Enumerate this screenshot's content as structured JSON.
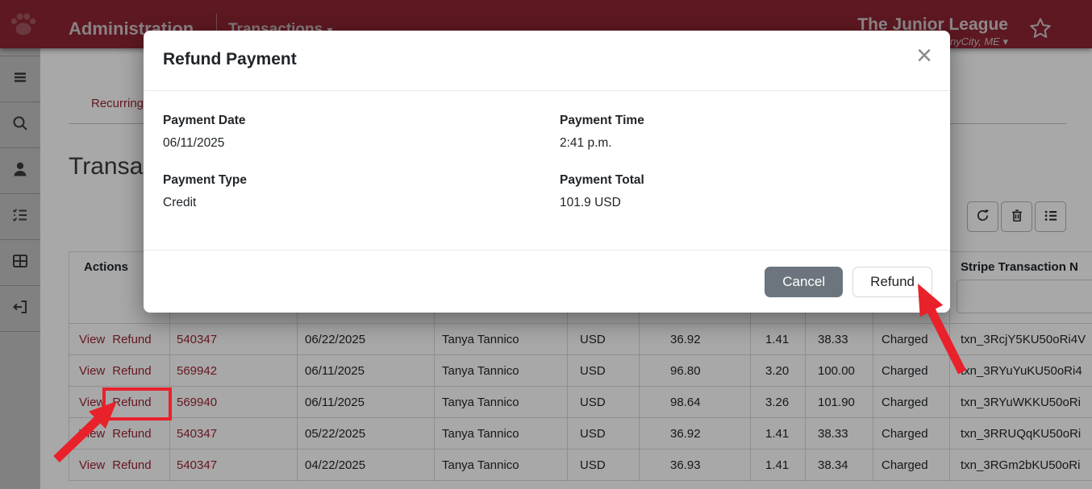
{
  "header": {
    "brand": "Administration",
    "nav": {
      "label": "Transactions",
      "caret": "▾"
    },
    "org": {
      "name": "The Junior League",
      "location": "AnyCity, ME",
      "caret": "▾"
    }
  },
  "sidebar": {
    "items": [
      {
        "icon": "menu-icon"
      },
      {
        "icon": "search-icon"
      },
      {
        "icon": "user-icon"
      },
      {
        "icon": "checklist-icon"
      },
      {
        "icon": "grid-icon"
      },
      {
        "icon": "logout-icon"
      }
    ]
  },
  "page": {
    "tab": "Recurring",
    "heading": "Transactions"
  },
  "toolbar": {
    "buttons": [
      {
        "icon": "refresh-icon"
      },
      {
        "icon": "trash-icon"
      },
      {
        "icon": "list-icon"
      }
    ]
  },
  "table": {
    "headers": {
      "actions": "Actions",
      "transaction": "",
      "date": "",
      "name": "",
      "currency": "",
      "amount": "",
      "fee": "",
      "total": "",
      "status": "",
      "stripe": "Stripe Transaction N"
    },
    "rows": [
      {
        "actions": [
          "View",
          "Refund"
        ],
        "transaction": "540347",
        "date": "06/22/2025",
        "name": "Tanya Tannico",
        "currency": "USD",
        "amount": "36.92",
        "fee": "1.41",
        "total": "38.33",
        "status": "Charged",
        "stripe": "txn_3RcjY5KU50oRi4V"
      },
      {
        "actions": [
          "View",
          "Refund"
        ],
        "transaction": "569942",
        "date": "06/11/2025",
        "name": "Tanya Tannico",
        "currency": "USD",
        "amount": "96.80",
        "fee": "3.20",
        "total": "100.00",
        "status": "Charged",
        "stripe": "txn_3RYuYuKU50oRi4"
      },
      {
        "actions": [
          "View",
          "Refund"
        ],
        "transaction": "569940",
        "date": "06/11/2025",
        "name": "Tanya Tannico",
        "currency": "USD",
        "amount": "98.64",
        "fee": "3.26",
        "total": "101.90",
        "status": "Charged",
        "stripe": "txn_3RYuWKKU50oRi"
      },
      {
        "actions": [
          "View",
          "Refund"
        ],
        "transaction": "540347",
        "date": "05/22/2025",
        "name": "Tanya Tannico",
        "currency": "USD",
        "amount": "36.92",
        "fee": "1.41",
        "total": "38.33",
        "status": "Charged",
        "stripe": "txn_3RRUQqKU50oRi"
      },
      {
        "actions": [
          "View",
          "Refund"
        ],
        "transaction": "540347",
        "date": "04/22/2025",
        "name": "Tanya Tannico",
        "currency": "USD",
        "amount": "36.93",
        "fee": "1.41",
        "total": "38.34",
        "status": "Charged",
        "stripe": "txn_3RGm2bKU50oRi"
      }
    ]
  },
  "modal": {
    "title": "Refund Payment",
    "close": "×",
    "fields": [
      {
        "label": "Payment Date",
        "value": "06/11/2025"
      },
      {
        "label": "Payment Time",
        "value": "2:41 p.m."
      },
      {
        "label": "Payment Type",
        "value": "Credit"
      },
      {
        "label": "Payment Total",
        "value": "101.9 USD"
      }
    ],
    "buttons": {
      "cancel": "Cancel",
      "refund": "Refund"
    }
  },
  "colors": {
    "brand": "#8e2533",
    "link": "#9c2433",
    "annotation": "#e8212b",
    "cancel_button": "#6c757d"
  }
}
